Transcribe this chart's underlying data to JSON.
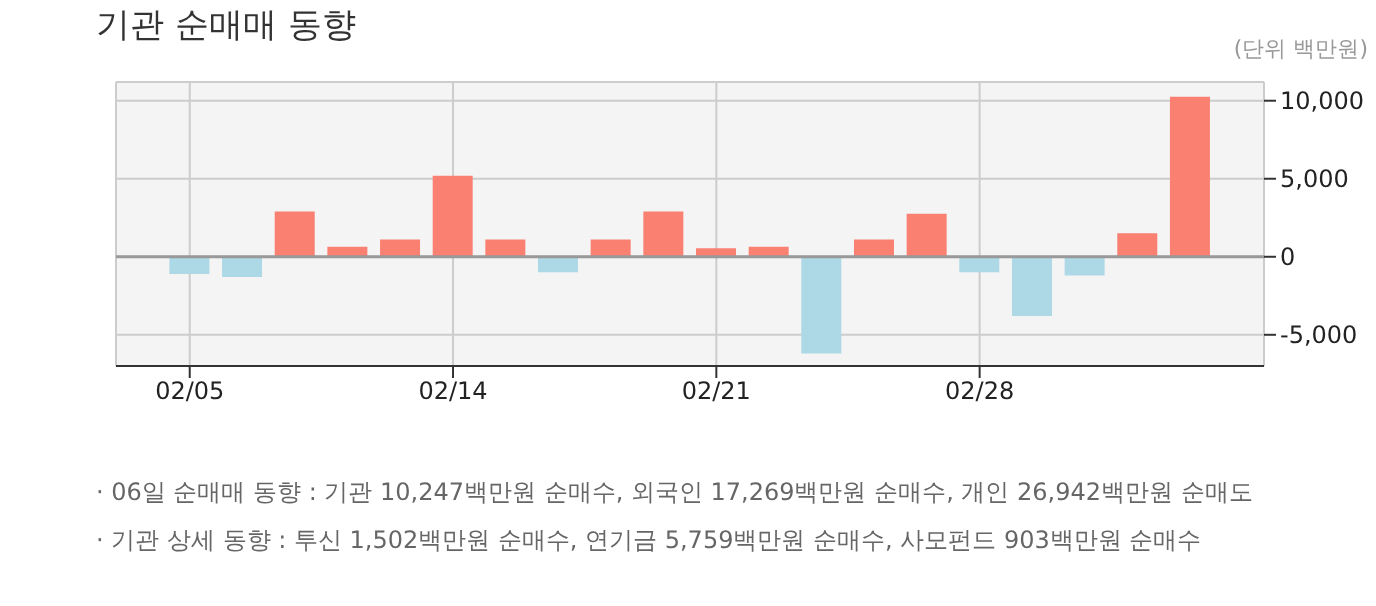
{
  "chart_data": {
    "type": "bar",
    "title": "기관 순매매 동향",
    "ylabel": "(단위 백만원)",
    "categories": [
      "02/05",
      null,
      null,
      null,
      null,
      "02/14",
      null,
      null,
      null,
      null,
      "02/21",
      null,
      null,
      null,
      null,
      "02/28",
      null,
      null,
      null,
      null
    ],
    "values": [
      -1100,
      -1300,
      2900,
      650,
      1100,
      5200,
      1100,
      -1000,
      1100,
      2900,
      550,
      650,
      -6200,
      1100,
      2750,
      -1000,
      -3800,
      -1200,
      1500,
      10247
    ],
    "colors": [
      "#add8e6",
      "#add8e6",
      "#fa8072",
      "#fa8072",
      "#fa8072",
      "#fa8072",
      "#fa8072",
      "#add8e6",
      "#fa8072",
      "#fa8072",
      "#fa8072",
      "#fa8072",
      "#add8e6",
      "#fa8072",
      "#fa8072",
      "#add8e6",
      "#add8e6",
      "#add8e6",
      "#fa8072",
      "#fa8072"
    ],
    "ylim": [
      -7000,
      11200
    ],
    "yticks": [
      {
        "value": -5000,
        "label": "-5,000"
      },
      0,
      {
        "value": 5000,
        "label": "5,000"
      },
      {
        "value": 10000,
        "label": "10,000"
      }
    ],
    "grid": true,
    "ref_lines": [
      {
        "axis": "y",
        "value": 0,
        "color": "#999999"
      }
    ],
    "annotations": [
      "· 06일 순매매 동향 : 기관 10,247백만원 순매수, 외국인 17,269백만원 순매수, 개인 26,942백만원 순매도",
      "· 기관 상세 동향 : 투신 1,502백만원 순매수, 연기금 5,759백만원 순매수, 사모펀드 903백만원 순매수"
    ]
  }
}
